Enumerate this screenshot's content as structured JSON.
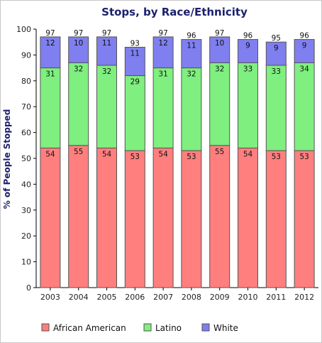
{
  "chart_data": {
    "type": "bar",
    "stacked": true,
    "title": "Stops, by Race/Ethnicity",
    "xlabel": "",
    "ylabel": "% of People Stopped",
    "ylim": [
      0,
      100
    ],
    "yticks": [
      0,
      10,
      20,
      30,
      40,
      50,
      60,
      70,
      80,
      90,
      100
    ],
    "grid": false,
    "legend_position": "bottom",
    "categories": [
      "2003",
      "2004",
      "2005",
      "2006",
      "2007",
      "2008",
      "2009",
      "2010",
      "2011",
      "2012"
    ],
    "series": [
      {
        "name": "African American",
        "color": "#ff7f7f",
        "values": [
          54,
          55,
          54,
          53,
          54,
          53,
          55,
          54,
          53,
          53
        ]
      },
      {
        "name": "Latino",
        "color": "#7fef7f",
        "values": [
          31,
          32,
          32,
          29,
          31,
          32,
          32,
          33,
          33,
          34
        ]
      },
      {
        "name": "White",
        "color": "#7f7fef",
        "values": [
          12,
          10,
          11,
          11,
          12,
          11,
          10,
          9,
          9,
          9
        ]
      }
    ],
    "totals": [
      97,
      97,
      97,
      93,
      97,
      96,
      97,
      96,
      95,
      96
    ]
  }
}
